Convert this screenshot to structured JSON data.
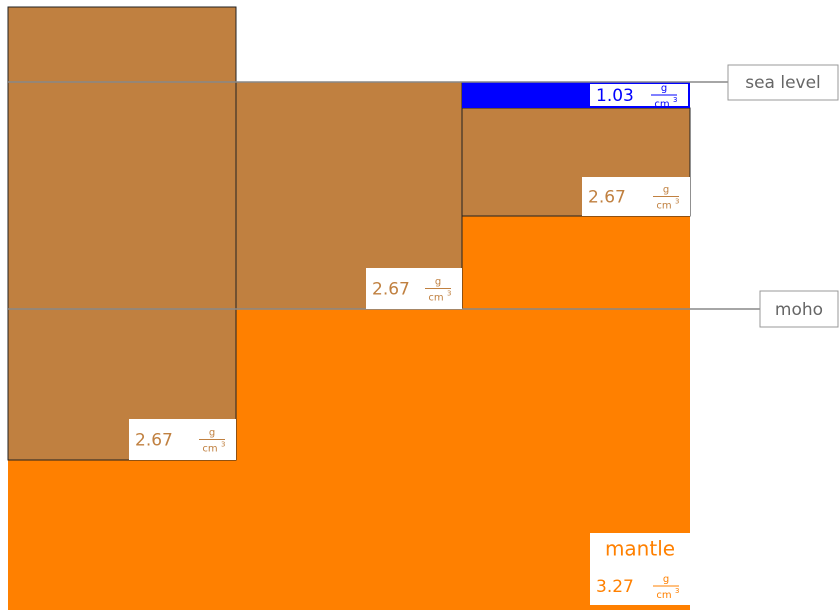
{
  "reference_lines": {
    "sea_level": "sea level",
    "moho": "moho"
  },
  "unit": {
    "numerator": "g",
    "denominator": "cm",
    "exponent": "3"
  },
  "columns": [
    {
      "crust_density": "2.67"
    },
    {
      "crust_density": "2.67"
    },
    {
      "water_density": "1.03",
      "crust_density": "2.67"
    }
  ],
  "mantle": {
    "label": "mantle",
    "density": "3.27"
  }
}
